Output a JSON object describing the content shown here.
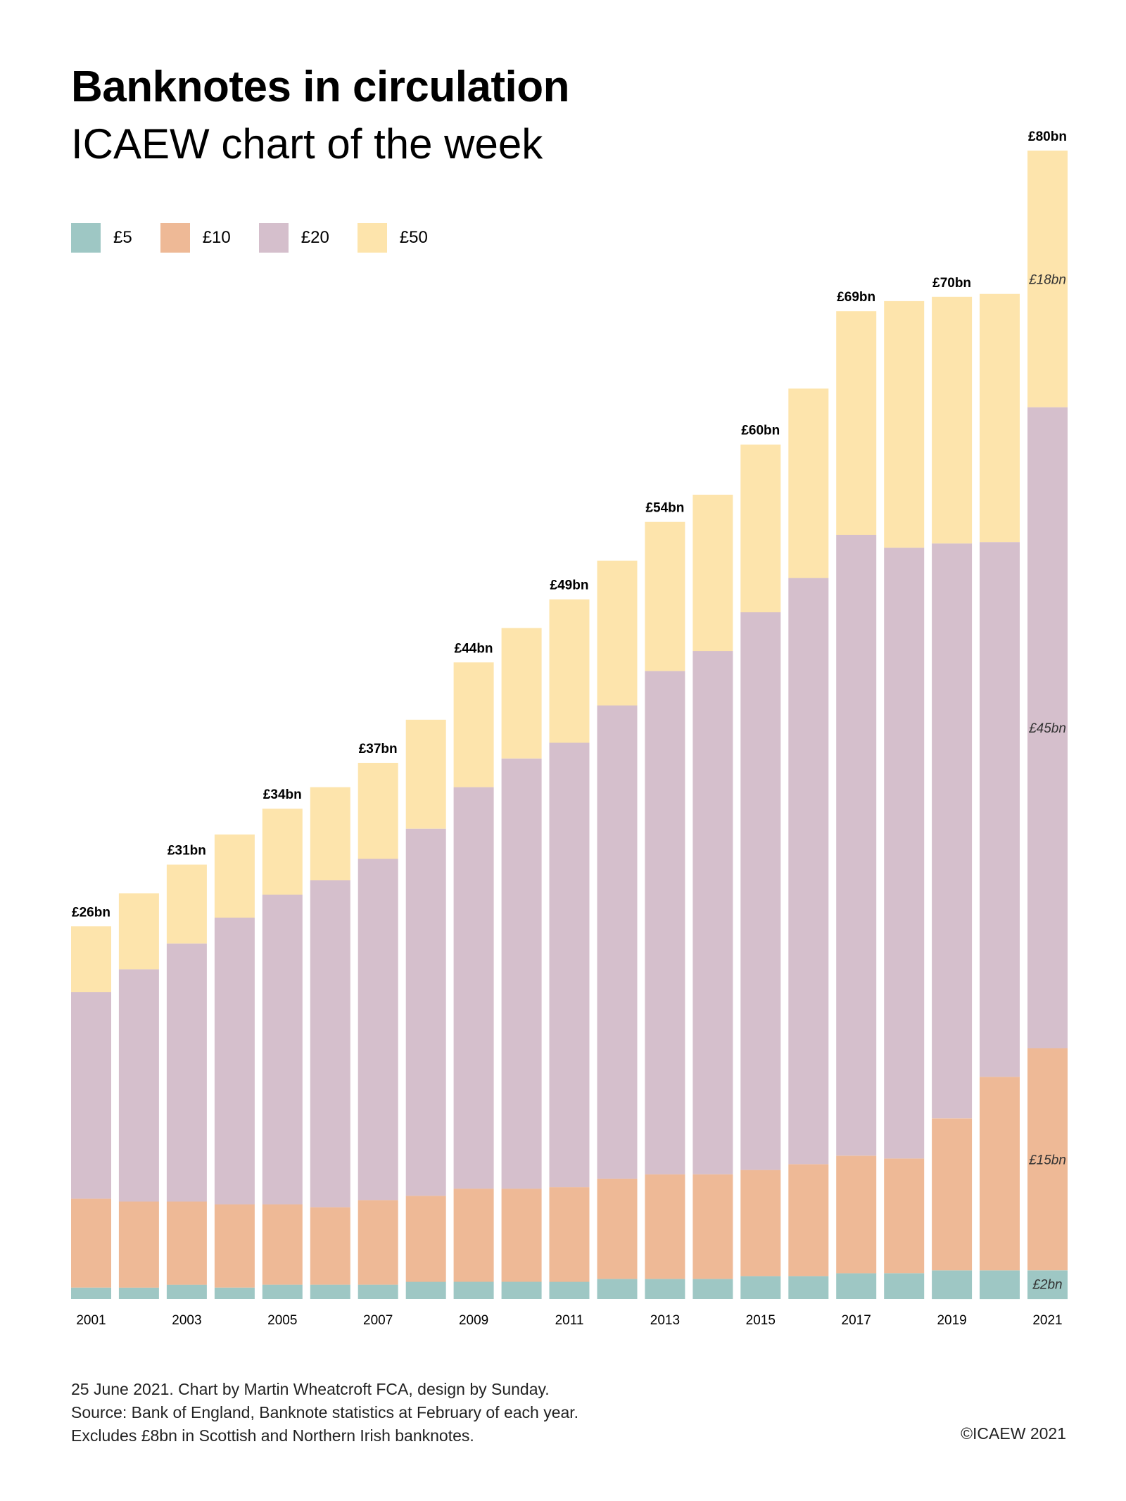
{
  "header": {
    "title": "Banknotes in circulation",
    "subtitle": "ICAEW chart of the week"
  },
  "legend": [
    {
      "label": "£5",
      "color": "#9ec7c4"
    },
    {
      "label": "£10",
      "color": "#eeb996"
    },
    {
      "label": "£20",
      "color": "#d5bfcc"
    },
    {
      "label": "£50",
      "color": "#fde4ac"
    }
  ],
  "chart_data": {
    "type": "bar",
    "stacked": true,
    "categories": [
      "2001",
      "2002",
      "2003",
      "2004",
      "2005",
      "2006",
      "2007",
      "2008",
      "2009",
      "2010",
      "2011",
      "2012",
      "2013",
      "2014",
      "2015",
      "2016",
      "2017",
      "2018",
      "2019",
      "2020",
      "2021"
    ],
    "x_tick_labels": [
      "2001",
      "",
      "2003",
      "",
      "2005",
      "",
      "2007",
      "",
      "2009",
      "",
      "2011",
      "",
      "2013",
      "",
      "2015",
      "",
      "2017",
      "",
      "2019",
      "",
      "2021"
    ],
    "series": [
      {
        "name": "£5",
        "color": "#9ec7c4",
        "values": [
          0.8,
          0.8,
          1.0,
          0.8,
          1.0,
          1.0,
          1.0,
          1.2,
          1.2,
          1.2,
          1.2,
          1.4,
          1.4,
          1.4,
          1.6,
          1.6,
          1.8,
          1.8,
          2.0,
          2.0,
          2.0
        ]
      },
      {
        "name": "£10",
        "color": "#eeb996",
        "values": [
          6.2,
          6.0,
          5.8,
          5.8,
          5.6,
          5.4,
          5.9,
          6.0,
          6.5,
          6.5,
          6.6,
          7.0,
          7.3,
          7.3,
          7.4,
          7.8,
          8.2,
          8.0,
          10.6,
          13.5,
          15.5
        ]
      },
      {
        "name": "£20",
        "color": "#d5bfcc",
        "values": [
          14.4,
          16.2,
          18.0,
          20.0,
          21.6,
          22.8,
          23.8,
          25.6,
          28.0,
          30.0,
          31.0,
          33.0,
          35.1,
          36.5,
          38.9,
          40.9,
          43.3,
          42.6,
          40.1,
          37.3,
          44.7
        ]
      },
      {
        "name": "£50",
        "color": "#fde4ac",
        "values": [
          4.6,
          5.3,
          5.5,
          5.8,
          6.0,
          6.5,
          6.7,
          7.6,
          8.7,
          9.1,
          10.0,
          10.1,
          10.4,
          10.9,
          11.7,
          13.2,
          15.6,
          17.2,
          17.2,
          17.3,
          17.9
        ]
      }
    ],
    "total_labels": [
      {
        "category": "2001",
        "text": "£26bn"
      },
      {
        "category": "2003",
        "text": "£31bn"
      },
      {
        "category": "2005",
        "text": "£34bn"
      },
      {
        "category": "2007",
        "text": "£37bn"
      },
      {
        "category": "2009",
        "text": "£44bn"
      },
      {
        "category": "2011",
        "text": "£49bn"
      },
      {
        "category": "2013",
        "text": "£54bn"
      },
      {
        "category": "2015",
        "text": "£60bn"
      },
      {
        "category": "2017",
        "text": "£69bn"
      },
      {
        "category": "2019",
        "text": "£70bn"
      },
      {
        "category": "2021",
        "text": "£80bn"
      }
    ],
    "segment_labels": [
      {
        "category": "2021",
        "series": "£5",
        "text": "£2bn"
      },
      {
        "category": "2021",
        "series": "£10",
        "text": "£15bn"
      },
      {
        "category": "2021",
        "series": "£20",
        "text": "£45bn"
      },
      {
        "category": "2021",
        "series": "£50",
        "text": "£18bn"
      }
    ],
    "ylim": [
      0,
      80
    ],
    "grid": false,
    "legend_position": "top-left"
  },
  "footer": {
    "lines": [
      "25 June 2021.   Chart by Martin Wheatcroft FCA, design by Sunday.",
      "Source: Bank of England, Banknote statistics at February of each year.",
      "Excludes £8bn in Scottish and Northern Irish banknotes."
    ],
    "copyright": "©ICAEW 2021"
  }
}
